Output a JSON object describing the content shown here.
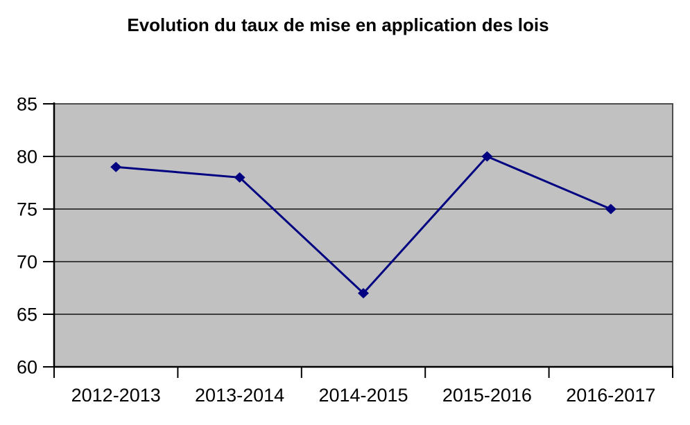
{
  "chart": {
    "title": "Evolution du taux de mise en application des lois"
  },
  "chart_data": {
    "type": "line",
    "title": "Evolution du taux de mise en application des lois",
    "categories": [
      "2012-2013",
      "2013-2014",
      "2014-2015",
      "2015-2016",
      "2016-2017"
    ],
    "values": [
      79,
      78,
      67,
      80,
      75
    ],
    "xlabel": "",
    "ylabel": "",
    "ylim": [
      60,
      85
    ],
    "ytick_step": 5,
    "grid": true,
    "legend": false,
    "marker": "diamond",
    "colors": {
      "series_line": "#000080",
      "marker_fill": "#000080",
      "plot_background": "#c1c1c1",
      "gridline": "#2b2b2b",
      "axis": "#000000",
      "plot_border": "#4d4d4d",
      "title_text": "#000000",
      "tick_text": "#000000",
      "page_background": "#ffffff"
    }
  }
}
